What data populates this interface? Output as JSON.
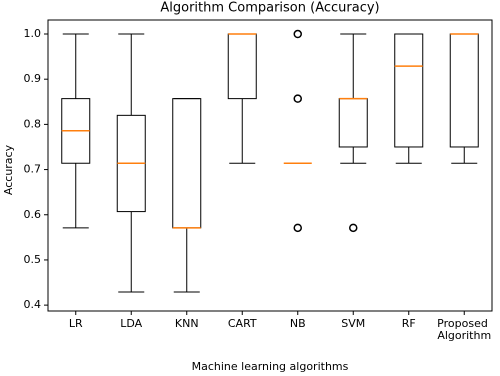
{
  "chart_data": {
    "type": "box",
    "title": "Algorithm Comparison (Accuracy)",
    "x_label": "Machine learning algorithms",
    "y_label": "Accuracy",
    "categories": [
      "LR",
      "LDA",
      "KNN",
      "CART",
      "NB",
      "SVM",
      "RF",
      "Proposed Algorithm"
    ],
    "boxes": [
      {
        "whislo": 0.571,
        "q1": 0.714,
        "med": 0.786,
        "q3": 0.857,
        "whishi": 1.0,
        "fliers": []
      },
      {
        "whislo": 0.429,
        "q1": 0.607,
        "med": 0.714,
        "q3": 0.82,
        "whishi": 1.0,
        "fliers": []
      },
      {
        "whislo": 0.429,
        "q1": 0.571,
        "med": 0.571,
        "q3": 0.857,
        "whishi": 0.857,
        "fliers": []
      },
      {
        "whislo": 0.714,
        "q1": 0.857,
        "med": 1.0,
        "q3": 1.0,
        "whishi": 1.0,
        "fliers": []
      },
      {
        "whislo": 0.714,
        "q1": 0.714,
        "med": 0.714,
        "q3": 0.714,
        "whishi": 0.714,
        "fliers": [
          1.0,
          0.857,
          0.571
        ]
      },
      {
        "whislo": 0.714,
        "q1": 0.75,
        "med": 0.857,
        "q3": 0.857,
        "whishi": 1.0,
        "fliers": [
          0.571
        ]
      },
      {
        "whislo": 0.714,
        "q1": 0.75,
        "med": 0.929,
        "q3": 1.0,
        "whishi": 1.0,
        "fliers": []
      },
      {
        "whislo": 0.714,
        "q1": 0.75,
        "med": 1.0,
        "q3": 1.0,
        "whishi": 1.0,
        "fliers": []
      }
    ],
    "box_color": "#000000",
    "median_color": "#ff7f0e",
    "ylim": [
      0.387,
      1.031
    ],
    "yticks": [
      0.4,
      0.5,
      0.6,
      0.7,
      0.8,
      0.9,
      {
        "value": 1,
        "label": "1.0"
      }
    ],
    "grid": false
  }
}
